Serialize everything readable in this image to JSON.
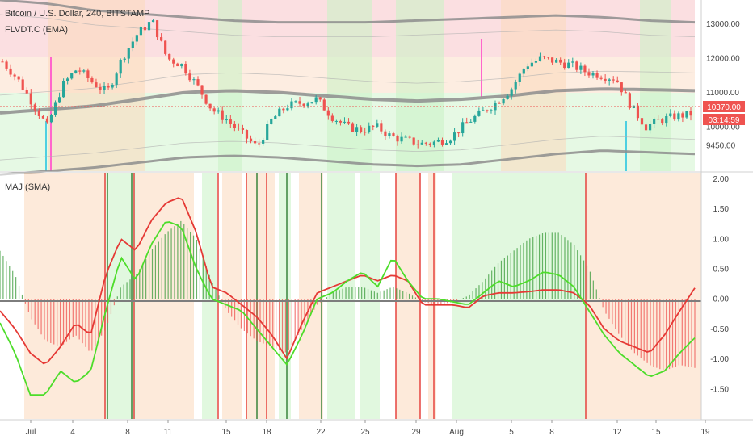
{
  "header": {
    "symbol": "Bitcoin / U.S. Dollar, 240, BITSTAMP",
    "indicator_top": "FLVDT.C (EMA)",
    "indicator_bottom": "MAJ (SMA)"
  },
  "price_axis": {
    "ticks": [
      "13000.00",
      "12000.00",
      "11000.00",
      "10000.00",
      "9450.00"
    ],
    "last_price": "10370.00",
    "countdown": "03:14:59"
  },
  "osc_axis": {
    "ticks": [
      "2.00",
      "1.50",
      "1.00",
      "0.50",
      "0.00",
      "-0.50",
      "-1.00",
      "-1.50"
    ]
  },
  "time_axis": {
    "labels": [
      "Jul",
      "4",
      "8",
      "11",
      "15",
      "18",
      "22",
      "25",
      "29",
      "Aug",
      "5",
      "8",
      "12",
      "15",
      "19"
    ]
  },
  "colors": {
    "bull": "#26a69a",
    "bear": "#ef5350",
    "line_red": "#e53935",
    "line_green": "#4ddd2a",
    "zone_red": "#f8c4c8",
    "zone_green": "#c8f2c4",
    "zone_orange": "#fbd8bc"
  },
  "chart_data": [
    {
      "type": "candlestick",
      "title": "Bitcoin / U.S. Dollar, 240, BITSTAMP",
      "x_labels": [
        "Jul",
        "4",
        "8",
        "11",
        "15",
        "18",
        "22",
        "25",
        "29",
        "Aug",
        "5",
        "8",
        "12",
        "15",
        "19"
      ],
      "ylim": [
        8700,
        13700
      ],
      "close_path": [
        11900,
        11400,
        10700,
        10000,
        11200,
        11700,
        11300,
        11000,
        12000,
        12700,
        13100,
        12000,
        11800,
        11200,
        10500,
        10200,
        9800,
        9400,
        10200,
        10600,
        10700,
        10800,
        10300,
        10000,
        9900,
        10000,
        9700,
        9600,
        9500,
        9550,
        9700,
        10100,
        10400,
        10700,
        11100,
        11800,
        12000,
        11900,
        11800,
        11600,
        11500,
        11400,
        10600,
        10000,
        10200,
        10300,
        10370
      ],
      "bands": [
        {
          "name": "upper",
          "values": [
            13700,
            13600,
            13400,
            13300,
            13200,
            13100,
            13050,
            13050,
            13050,
            13100,
            13150,
            13200,
            13250,
            13200,
            13100,
            13050
          ]
        },
        {
          "name": "mid",
          "values": [
            10400,
            10500,
            10600,
            10800,
            11000,
            11050,
            11000,
            10900,
            10800,
            10750,
            10800,
            10900,
            11050,
            11100,
            11080,
            11050
          ]
        },
        {
          "name": "lower",
          "values": [
            8600,
            8700,
            8800,
            8950,
            9100,
            9150,
            9100,
            9000,
            8900,
            8850,
            8900,
            9050,
            9200,
            9300,
            9250,
            9200
          ]
        }
      ],
      "last_price": 10370
    },
    {
      "type": "line",
      "title": "MAJ (SMA)",
      "ylim": [
        -2.0,
        2.1
      ],
      "yticks": [
        2.0,
        1.5,
        1.0,
        0.5,
        0.0,
        -0.5,
        -1.0,
        -1.5
      ],
      "x_labels": [
        "Jul",
        "4",
        "8",
        "11",
        "15",
        "18",
        "22",
        "25",
        "29",
        "Aug",
        "5",
        "8",
        "12",
        "15",
        "19"
      ],
      "series": [
        {
          "values": [
            -0.2,
            -0.5,
            -0.9,
            -1.1,
            -0.8,
            -0.4,
            -0.6,
            0.4,
            1.0,
            0.8,
            1.3,
            1.6,
            1.7,
            1.1,
            0.2,
            0.1,
            -0.1,
            -0.3,
            -0.6,
            -1.0,
            -0.4,
            0.1,
            0.2,
            0.3,
            0.4,
            0.3,
            0.4,
            0.3,
            -0.1,
            -0.1,
            -0.1,
            -0.15,
            0.05,
            0.1,
            0.1,
            0.12,
            0.15,
            0.15,
            0.1,
            -0.1,
            -0.5,
            -0.7,
            -0.8,
            -0.9,
            -0.6,
            -0.2,
            0.18
          ]
        },
        {
          "values": [
            -0.4,
            -0.9,
            -1.6,
            -1.6,
            -1.2,
            -1.4,
            -1.2,
            -0.2,
            0.7,
            0.3,
            0.9,
            1.3,
            1.2,
            0.5,
            0.0,
            -0.1,
            -0.2,
            -0.5,
            -0.8,
            -1.1,
            -0.6,
            0.0,
            0.1,
            0.3,
            0.45,
            0.2,
            0.7,
            0.3,
            0.0,
            0.0,
            -0.05,
            -0.1,
            0.1,
            0.3,
            0.2,
            0.3,
            0.45,
            0.4,
            0.2,
            -0.2,
            -0.6,
            -0.9,
            -1.1,
            -1.3,
            -1.2,
            -0.9,
            -0.65
          ]
        }
      ],
      "histogram": [
        0.8,
        0.4,
        -0.3,
        -0.7,
        -0.8,
        -0.6,
        -0.9,
        -0.5,
        0.2,
        0.4,
        0.8,
        1.1,
        1.3,
        1.0,
        0.3,
        -0.2,
        -0.5,
        -0.7,
        -0.8,
        -0.9,
        -0.5,
        -0.1,
        0.1,
        0.2,
        0.2,
        0.1,
        0.2,
        0.1,
        -0.05,
        -0.1,
        -0.05,
        0.05,
        0.3,
        0.6,
        0.8,
        1.0,
        1.1,
        1.1,
        0.9,
        0.5,
        -0.2,
        -0.6,
        -0.9,
        -1.1,
        -1.2,
        -1.1,
        -1.15
      ],
      "zero_line": 0
    }
  ]
}
